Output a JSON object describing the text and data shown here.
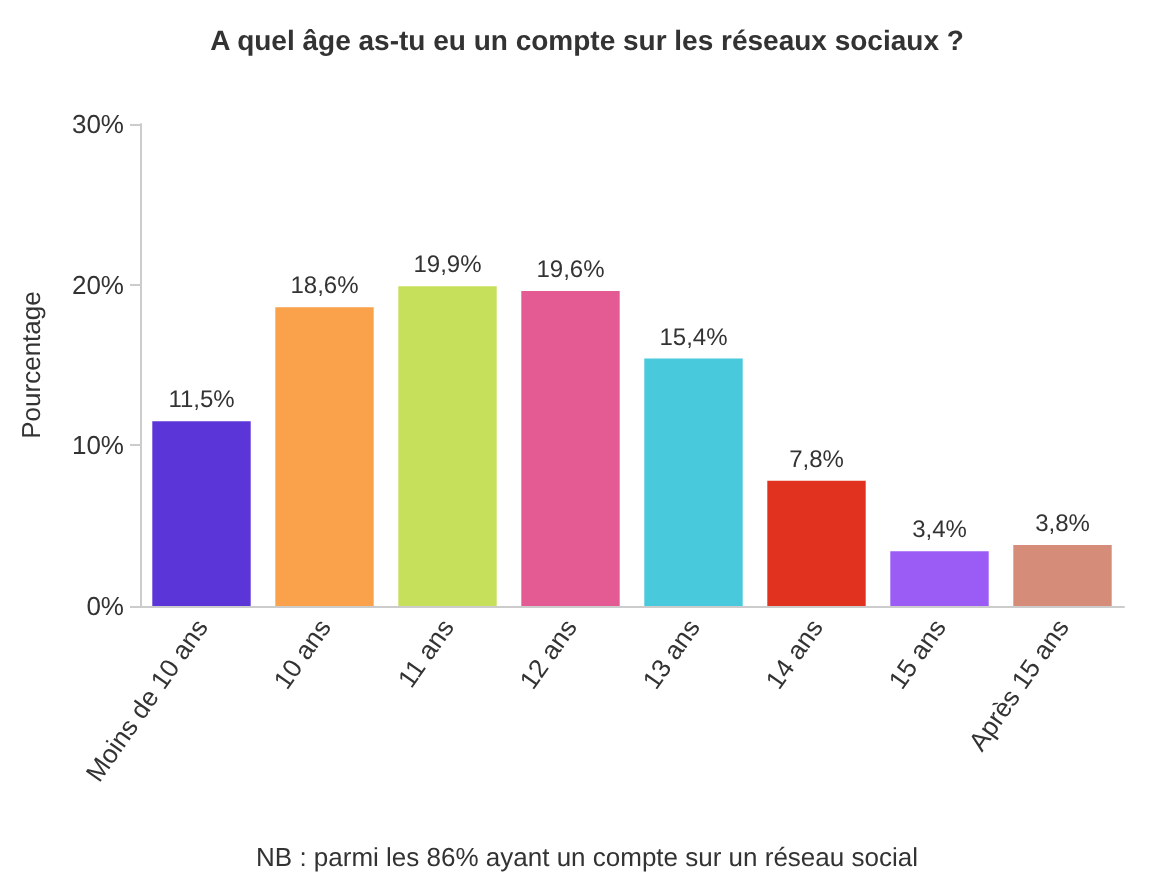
{
  "chart_data": {
    "type": "bar",
    "title": "A quel âge as-tu eu un compte sur les réseaux sociaux ?",
    "ylabel": "Pourcentage",
    "categories": [
      "Moins de 10 ans",
      "10 ans",
      "11 ans",
      "12 ans",
      "13 ans",
      "14 ans",
      "15 ans",
      "Après 15 ans"
    ],
    "values": [
      11.5,
      18.6,
      19.9,
      19.6,
      15.4,
      7.8,
      3.4,
      3.8
    ],
    "colors": [
      "#5b35d8",
      "#f9a14b",
      "#c6e05c",
      "#e45a93",
      "#48c9dc",
      "#e0321e",
      "#9b5cf6",
      "#d58c78"
    ],
    "value_labels": [
      "11,5%",
      "18,6%",
      "19,9%",
      "19,6%",
      "15,4%",
      "7,8%",
      "3,4%",
      "3,8%"
    ],
    "ylim": [
      0,
      30
    ],
    "yticks": [
      {
        "value": 0,
        "label": "0%"
      },
      {
        "value": 10,
        "label": "10%"
      },
      {
        "value": 20,
        "label": "20%"
      },
      {
        "value": 30,
        "label": "30%"
      }
    ],
    "grid": false,
    "annotations": [
      "NB : parmi les 86% ayant un compte sur un réseau social"
    ]
  }
}
